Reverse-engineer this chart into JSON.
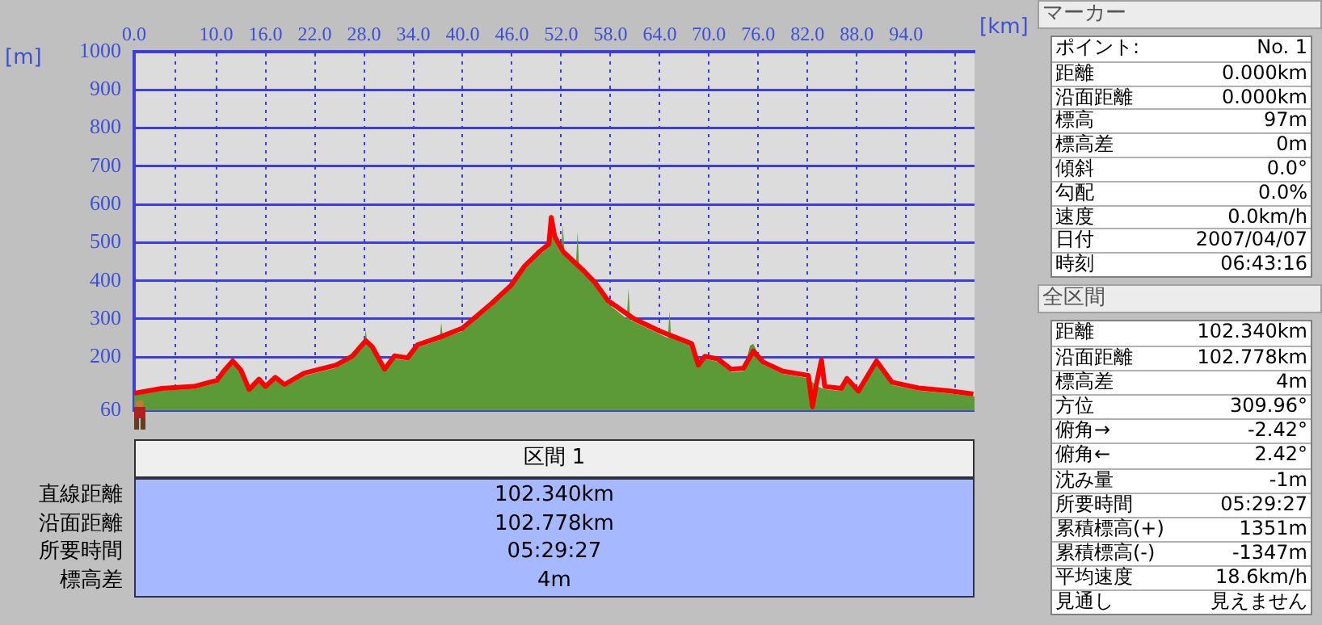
{
  "chart_data": [
    {
      "type": "line",
      "xlabel": "[km]",
      "ylabel": "[m]",
      "xlim": [
        0,
        102.34
      ],
      "xticks": [
        {
          "value": 0,
          "label": "0.0"
        },
        {
          "value": 5,
          "label": null
        },
        {
          "value": 10,
          "label": "10.0"
        },
        {
          "value": 16,
          "label": "16.0"
        },
        {
          "value": 22,
          "label": "22.0"
        },
        {
          "value": 28,
          "label": "28.0"
        },
        {
          "value": 34,
          "label": "34.0"
        },
        {
          "value": 40,
          "label": "40.0"
        },
        {
          "value": 46,
          "label": "46.0"
        },
        {
          "value": 52,
          "label": "52.0"
        },
        {
          "value": 58,
          "label": "58.0"
        },
        {
          "value": 64,
          "label": "64.0"
        },
        {
          "value": 70,
          "label": "70.0"
        },
        {
          "value": 76,
          "label": "76.0"
        },
        {
          "value": 82,
          "label": "82.0"
        },
        {
          "value": 88,
          "label": "88.0"
        },
        {
          "value": 94,
          "label": "94.0"
        },
        {
          "value": 100,
          "label": null
        }
      ],
      "ylim": [
        60,
        1000
      ],
      "yticks": [
        60,
        200,
        300,
        400,
        500,
        600,
        700,
        800,
        900,
        1000
      ],
      "grid": true,
      "series": [
        {
          "type": "area",
          "color": "#5b9a36",
          "x": [
            0,
            3.4,
            7.3,
            10.1,
            10.9,
            12.0,
            13.0,
            14.0,
            15.2,
            16.0,
            17.2,
            18.3,
            20.7,
            24.6,
            26.6,
            28.0,
            28.2,
            28.4,
            29.0,
            30.5,
            31.7,
            33.3,
            34.5,
            37.2,
            37.4,
            37.6,
            40.0,
            43.5,
            45.9,
            47.5,
            49.4,
            50.5,
            50.8,
            51.2,
            52.0,
            52.2,
            52.4,
            53.8,
            54.0,
            54.2,
            56.1,
            57.7,
            60.0,
            60.2,
            60.4,
            60.9,
            64.0,
            65.0,
            65.2,
            65.4,
            67.9,
            68.7,
            69.5,
            71.1,
            72.7,
            74.2,
            75.0,
            75.4,
            76.6,
            79.0,
            82.1,
            83.1,
            84.1,
            86.1,
            86.8,
            88.2,
            90.4,
            92.3,
            95.5,
            99.4,
            102.34
          ],
          "values": [
            100,
            112,
            117,
            132,
            155,
            182,
            158,
            108,
            135,
            116,
            140,
            121,
            151,
            172,
            196,
            230,
            272,
            235,
            218,
            160,
            195,
            191,
            225,
            245,
            290,
            250,
            268,
            332,
            380,
            428,
            468,
            488,
            540,
            505,
            470,
            545,
            480,
            440,
            530,
            430,
            388,
            340,
            300,
            380,
            298,
            292,
            260,
            250,
            320,
            250,
            228,
            172,
            195,
            188,
            160,
            163,
            230,
            235,
            180,
            156,
            145,
            124,
            116,
            111,
            136,
            104,
            183,
            127,
            112,
            104,
            97
          ]
        },
        {
          "type": "line",
          "color": "#ff0000",
          "x": [
            0,
            3.4,
            7.3,
            10.1,
            10.9,
            12.0,
            13.0,
            14.0,
            15.2,
            16.0,
            17.2,
            18.3,
            20.7,
            24.6,
            26.6,
            28.2,
            29.0,
            30.5,
            31.7,
            33.3,
            34.5,
            37.2,
            40.0,
            43.5,
            45.9,
            47.5,
            49.4,
            50.5,
            50.8,
            51.2,
            52.2,
            54.6,
            56.1,
            57.7,
            60.9,
            64.0,
            67.9,
            68.7,
            69.5,
            71.1,
            72.7,
            74.2,
            75.4,
            76.6,
            79.0,
            82.1,
            82.6,
            83.1,
            83.7,
            84.1,
            86.1,
            86.8,
            88.2,
            90.4,
            92.3,
            95.5,
            99.4,
            102.2
          ],
          "values": [
            105,
            118,
            123,
            139,
            163,
            190,
            166,
            115,
            142,
            123,
            147,
            128,
            158,
            179,
            203,
            243,
            227,
            168,
            203,
            198,
            232,
            252,
            276,
            340,
            388,
            437,
            477,
            496,
            566,
            517,
            477,
            429,
            396,
            348,
            300,
            268,
            235,
            179,
            202,
            195,
            168,
            171,
            216,
            187,
            163,
            152,
            70,
            131,
            192,
            123,
            118,
            144,
            111,
            190,
            134,
            119,
            111,
            103
          ]
        }
      ]
    },
    {
      "type": "other",
      "title": "区間 1",
      "annotations": [
        "直線距離",
        "102.340km",
        "沿面距離",
        "102.778km",
        "所要時間",
        "05:29:27",
        "標高差",
        "4m"
      ]
    },
    {
      "type": "other",
      "title": "マーカー",
      "annotations": [
        "ポイント:",
        "No. 1",
        "距離",
        "0.000km",
        "沿面距離",
        "0.000km",
        "標高",
        "97m",
        "標高差",
        "0m",
        "傾斜",
        "0.0°",
        "勾配",
        "0.0%",
        "速度",
        "0.0km/h",
        "日付",
        "2007/04/07",
        "時刻",
        "06:43:16"
      ]
    },
    {
      "type": "other",
      "title": "全区間",
      "annotations": [
        "距離",
        "102.340km",
        "沿面距離",
        "102.778km",
        "標高差",
        "4m",
        "方位",
        "309.96°",
        "俯角→",
        "-2.42°",
        "俯角←",
        "2.42°",
        "沈み量",
        "-1m",
        "所要時間",
        "05:29:27",
        "累積標高(+)",
        "1351m",
        "累積標高(-)",
        "-1347m",
        "平均速度",
        "18.6km/h",
        "見通し",
        "見えません"
      ]
    }
  ]
}
